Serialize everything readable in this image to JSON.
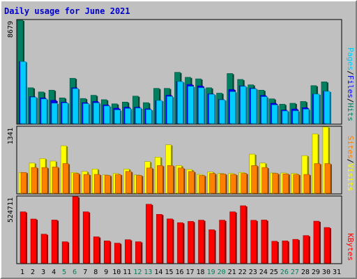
{
  "chart_data": {
    "type": "bar",
    "title": "Daily usage for June 2021",
    "categories": [
      "1",
      "2",
      "3",
      "4",
      "5",
      "6",
      "7",
      "8",
      "9",
      "10",
      "11",
      "12",
      "13",
      "14",
      "15",
      "16",
      "17",
      "18",
      "19",
      "20",
      "21",
      "22",
      "23",
      "24",
      "25",
      "26",
      "27",
      "28",
      "29",
      "30",
      "31"
    ],
    "weekend_days": [
      "5",
      "6",
      "12",
      "13",
      "19",
      "20",
      "26",
      "27"
    ],
    "panels": [
      {
        "name": "hits-files-pages",
        "max_label": "8679",
        "ymax": 8679,
        "legend": [
          {
            "text": "Pages",
            "color": "#00ccff"
          },
          {
            "text": "/",
            "color": "#000000"
          },
          {
            "text": "Files",
            "color": "#0000ff"
          },
          {
            "text": "/",
            "color": "#000000"
          },
          {
            "text": "Hits",
            "color": "#008060"
          }
        ],
        "series": [
          {
            "name": "Hits",
            "color": "#008060",
            "values": [
              8679,
              3000,
              2650,
              2800,
              2150,
              3800,
              2100,
              2370,
              2000,
              1650,
              1800,
              2300,
              1750,
              2950,
              2950,
              4300,
              3880,
              3750,
              3000,
              2550,
              4200,
              3700,
              3250,
              2800,
              2070,
              1620,
              1700,
              1850,
              3180,
              3500,
              null
            ]
          },
          {
            "name": "Files",
            "color": "#0000ff",
            "values": [
              5200,
              2250,
              2150,
              1950,
              1800,
              3000,
              1750,
              1850,
              1560,
              1290,
              1370,
              1370,
              1230,
              1920,
              2370,
              3520,
              3280,
              3160,
              2490,
              2010,
              2860,
              3160,
              2960,
              2360,
              1700,
              1130,
              1220,
              1330,
              2470,
              2700,
              null
            ]
          },
          {
            "name": "Pages",
            "color": "#00ccff",
            "values": [
              5200,
              2210,
              2060,
              1700,
              1730,
              2930,
              1670,
              1730,
              1470,
              1140,
              1260,
              1290,
              1160,
              1930,
              2270,
              3520,
              3120,
              3000,
              2450,
              1980,
              2670,
              3120,
              2920,
              2250,
              1560,
              1050,
              1060,
              1200,
              2470,
              2700,
              null
            ]
          }
        ]
      },
      {
        "name": "visits-sites",
        "max_label": "1341",
        "ymax": 1341,
        "legend": [
          {
            "text": "Sites",
            "color": "#ff8000"
          },
          {
            "text": "/",
            "color": "#000000"
          },
          {
            "text": "Visits",
            "color": "#ffff00"
          }
        ],
        "series": [
          {
            "name": "Visits",
            "color": "#ffff00",
            "values": [
              420,
              610,
              700,
              650,
              960,
              420,
              440,
              490,
              370,
              400,
              490,
              370,
              640,
              730,
              980,
              560,
              480,
              380,
              430,
              400,
              400,
              420,
              790,
              610,
              410,
              410,
              400,
              760,
              1200,
              1341,
              null
            ]
          },
          {
            "name": "Sites",
            "color": "#ff8000",
            "values": [
              420,
              520,
              520,
              530,
              600,
              400,
              380,
              380,
              360,
              380,
              440,
              360,
              510,
              560,
              560,
              510,
              440,
              360,
              400,
              390,
              380,
              400,
              560,
              520,
              400,
              390,
              380,
              380,
              600,
              600,
              null
            ]
          }
        ]
      },
      {
        "name": "kbytes",
        "max_label": "524711",
        "ymax": 524711,
        "legend": [
          {
            "text": "KBytes",
            "color": "#ff0000"
          }
        ],
        "series": [
          {
            "name": "KBytes",
            "color": "#ff0000",
            "values": [
              405000,
              348000,
              228000,
              340000,
              168000,
              524711,
              405000,
              207000,
              175000,
              157000,
              184000,
              168000,
              465000,
              385000,
              349000,
              319000,
              329000,
              339000,
              263000,
              339000,
              405000,
              453000,
              338000,
              340000,
              172000,
              175000,
              187000,
              217000,
              331000,
              281000,
              null
            ]
          }
        ]
      }
    ]
  }
}
